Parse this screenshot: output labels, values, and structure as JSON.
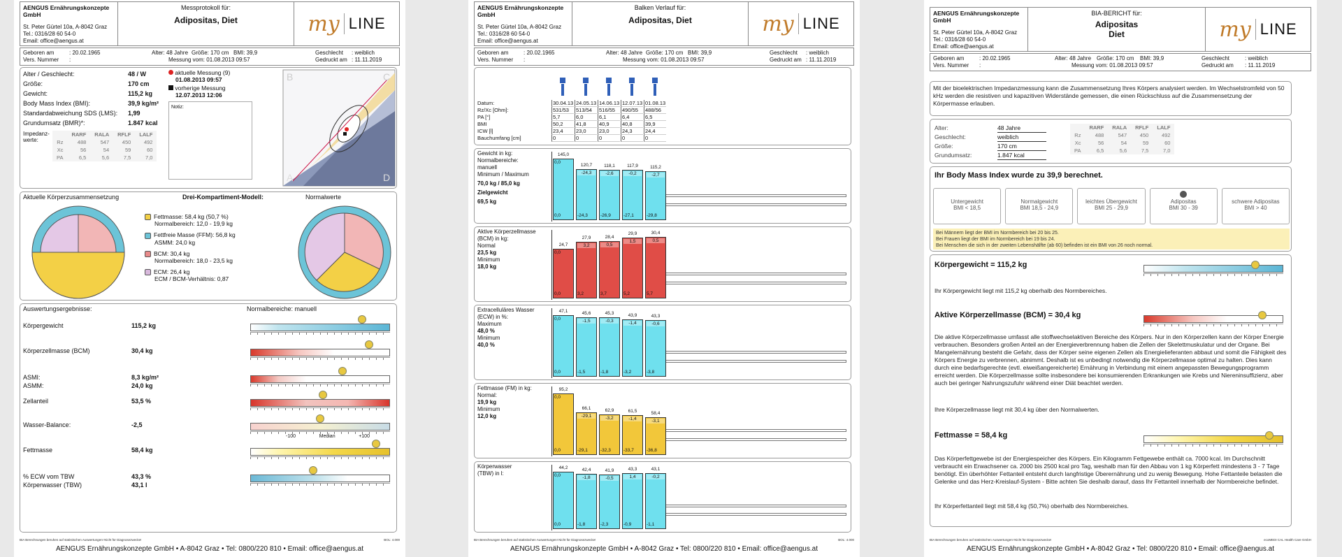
{
  "company": {
    "name": "AENGUS Ernährungskonzepte GmbH",
    "address": "St. Peter Gürtel 10a, A-8042 Graz",
    "tel": "Tel.: 0316/28 60 54-0",
    "email": "Email: office@aengus.at"
  },
  "logo": {
    "my": "my",
    "line": "LINE"
  },
  "patient": {
    "name": "Adipositas, Diet",
    "first": "Adipositas",
    "last": "Diet"
  },
  "info": {
    "geboren_label": "Geboren am",
    "geboren": ": 20.02.1965",
    "vers_label": "Vers. Nummer",
    "vers": ":",
    "alter": "Alter: 48 Jahre",
    "groesse": "Größe: 170 cm",
    "bmi": "BMI: 39,9",
    "messung": "Messung vom: 01.08.2013 09:57",
    "geschlecht_label": "Geschlecht",
    "geschlecht": ": weiblich",
    "gedruckt_label": "Gedruckt am",
    "gedruckt": ": 11.11.2019"
  },
  "footer": "AENGUS Ernährungskonzepte GmbH • A-8042 Graz • Tel: 0800/220 810 • Email: office@aengus.at",
  "smallnote_left": "BIA Berechnungen beruhen auf statistischen Auswertungen! Nicht für Diagnosezwecke!",
  "smallnote_right": "BOL: 4.000",
  "p1": {
    "title": "Messprotokoll für:",
    "rows": [
      {
        "k": "Alter / Geschlecht:",
        "v": "48 / W"
      },
      {
        "k": "Größe:",
        "v": "170 cm"
      },
      {
        "k": "Gewicht:",
        "v": "115,2 kg"
      },
      {
        "k": "Body Mass Index (BMI):",
        "v": "39,9 kg/m²"
      },
      {
        "k": "Standardabweichung SDS (LMS):",
        "v": "1,99"
      },
      {
        "k": "Grundumsatz (BMR)*:",
        "v": "1.847 kcal"
      }
    ],
    "imp_label": "Impedanz-werte:",
    "imp": {
      "head": [
        "",
        "RARF",
        "RALA",
        "RFLF",
        "LALF"
      ],
      "rows": [
        [
          "Rz",
          "488",
          "547",
          "450",
          "492"
        ],
        [
          "Xc",
          "56",
          "54",
          "59",
          "60"
        ],
        [
          "PA",
          "6,5",
          "5,6",
          "7,5",
          "7,0"
        ]
      ]
    },
    "current": "aktuelle Messung (9)",
    "current_date": "01.08.2013 09:57",
    "previous": "vorherige Messung",
    "previous_date": "12.07.2013 12:06",
    "notiz": "Notiz:",
    "comp_title": "Aktuelle Körperzusammensetzung",
    "model_title": "Drei-Kompartiment-Modell:",
    "norm_title": "Normalwerte",
    "legend": [
      {
        "l1": "Fettmasse: 58,4 kg (50,7 %)",
        "l2": "Normalbereich: 12,0 - 19,9 kg",
        "color": "#f3d046"
      },
      {
        "l1": "Fettfreie Masse (FFM): 56,8 kg",
        "l2": "ASMM: 24,0 kg",
        "color": "#6cc4d8"
      },
      {
        "l1": "BCM: 30,4 kg",
        "l2": "Normalbereich: 18,0 - 23,5 kg",
        "color": "#e88a8a"
      },
      {
        "l1": "ECM: 26,4 kg",
        "l2": "ECM / BCM-Verhältnis: 0,87",
        "color": "#d8b8dc"
      }
    ],
    "results_title": "Auswertungsergebnisse:",
    "normal_title": "Normalbereiche: manuell",
    "results": [
      {
        "k": "Körpergewicht",
        "v": "115,2 kg"
      },
      {
        "k": "Körperzellmasse (BCM)",
        "v": "30,4 kg"
      },
      {
        "k": "ASMI:",
        "v": "8,3 kg/m²",
        "k2": "ASMM:",
        "v2": "24,0 kg"
      },
      {
        "k": "Zellanteil",
        "v": "53,5 %"
      },
      {
        "k": "Wasser-Balance:",
        "v": "-2,5"
      },
      {
        "k": "Fettmasse",
        "v": "58,4 kg"
      },
      {
        "k": "% ECW vom TBW",
        "v": "43,3 %",
        "k2": "Körperwasser (TBW)",
        "v2": "43,1 l"
      }
    ],
    "wb_labels": [
      "-100",
      "Median",
      "+100"
    ],
    "graph_corners": [
      "B",
      "C",
      "A",
      "D"
    ]
  },
  "p2": {
    "title": "Balken Verlauf für:",
    "table": {
      "labels": [
        "Datum:",
        "Rz/Xc [Ohm]:",
        "PA [°]",
        "BMI",
        "ICW [l]",
        "Bauchumfang [cm]"
      ],
      "cols": [
        [
          "30.04.13",
          "531/53",
          "5,7",
          "50,2",
          "23,4",
          "0"
        ],
        [
          "24.05.13",
          "513/54",
          "6,0",
          "41,8",
          "23,0",
          "0"
        ],
        [
          "14.06.13",
          "516/55",
          "6,1",
          "40,9",
          "23,0",
          "0"
        ],
        [
          "12.07.13",
          "490/55",
          "6,4",
          "40,8",
          "24,3",
          "0"
        ],
        [
          "01.08.13",
          "488/56",
          "6,5",
          "39,9",
          "24,4",
          "0"
        ]
      ]
    },
    "sections": [
      {
        "label": [
          "Gewicht in kg:",
          "Normalbereiche:",
          "manuell",
          "Minimum / Maximum"
        ],
        "bold": [
          "70,0 kg / 85,0 kg",
          "Zielgewicht",
          "69,5 kg"
        ],
        "top": [
          "145,0",
          "120,7",
          "118,1",
          "117,9",
          "115,2"
        ],
        "first": "0,0",
        "diff": [
          "",
          "-24,3",
          "-2,6",
          "-0,2",
          "-2,7"
        ],
        "bottom": [
          "0,0",
          "-24,3",
          "-26,9",
          "-27,1",
          "-29,8"
        ],
        "color": "#6fe0ee"
      },
      {
        "label": [
          "Aktive Körperzellmasse",
          "(BCM) in kg:",
          "Normal",
          "23,5 kg",
          "Minimum",
          "18,0 kg"
        ],
        "bold": [],
        "top": [
          "24,7",
          "27,9",
          "28,4",
          "29,9",
          "30,4"
        ],
        "first": "0,0",
        "diff": [
          "",
          "3,2",
          "0,5",
          "1,5",
          "0,5"
        ],
        "bottom": [
          "0,0",
          "3,2",
          "3,7",
          "5,2",
          "5,7"
        ],
        "color": "#e04d47"
      },
      {
        "label": [
          "Extracelluläres Wasser",
          "(ECW) in %:",
          "Maximum",
          "48,0 %",
          "Minimum",
          "40,0 %"
        ],
        "bold": [],
        "top": [
          "47,1",
          "45,6",
          "45,3",
          "43,9",
          "43,3"
        ],
        "first": "0,0",
        "diff": [
          "",
          "-1,5",
          "-0,3",
          "-1,4",
          "-0,6"
        ],
        "bottom": [
          "0,0",
          "-1,5",
          "-1,8",
          "-3,2",
          "-3,8"
        ],
        "color": "#6fe0ee"
      },
      {
        "label": [
          "Fettmasse (FM) in kg:",
          "Normal:",
          "19,9 kg",
          "Minimum",
          "12,0 kg"
        ],
        "bold": [],
        "top": [
          "95,2",
          "66,1",
          "62,9",
          "61,5",
          "58,4"
        ],
        "first": "0,0",
        "diff": [
          "",
          "-29,1",
          "-3,2",
          "-1,4",
          "-3,1"
        ],
        "bottom": [
          "0,0",
          "-29,1",
          "-32,3",
          "-33,7",
          "-36,8"
        ],
        "color": "#f2c73a"
      },
      {
        "label": [
          "Körperwasser",
          "(TBW) in l:"
        ],
        "bold": [],
        "top": [
          "44,2",
          "42,4",
          "41,9",
          "43,3",
          "43,1"
        ],
        "first": "0,0",
        "diff": [
          "",
          "-1,8",
          "-0,5",
          "1,4",
          "-0,2"
        ],
        "bottom": [
          "0,0",
          "-1,8",
          "-2,3",
          "-0,9",
          "-1,1"
        ],
        "color": "#6fe0ee"
      }
    ]
  },
  "p3": {
    "title": "BIA-BERICHT für:",
    "intro": "Mit der bioelektrischen Impedanzmessung kann die Zusammensetzung Ihres Körpers analysiert werden. Im Wechselstromfeld von 50 kHz werden die resistiven und kapazitiven Widerstände gemessen, die einen Rückschluss auf die Zusammensetzung der Körpermasse erlauben.",
    "facts": [
      {
        "k": "Alter:",
        "v": "48 Jahre"
      },
      {
        "k": "Geschlecht:",
        "v": "weiblich"
      },
      {
        "k": "Größe:",
        "v": "170 cm"
      },
      {
        "k": "Grundumsatz:",
        "v": "1.847 kcal"
      }
    ],
    "bmi_heading": "Ihr Body Mass Index wurde zu 39,9 berechnet.",
    "bmi_cards": [
      {
        "t": "Untergewicht",
        "r": "BMI < 18,5"
      },
      {
        "t": "Normalgewicht",
        "r": "BMI 18,5 - 24,9"
      },
      {
        "t": "leichtes Übergewicht",
        "r": "BMI 25 - 29,9"
      },
      {
        "t": "Adipositas",
        "r": "BMI 30 - 39"
      },
      {
        "t": "schwere Adipositas",
        "r": "BMI > 40"
      }
    ],
    "bmi_notes": [
      "Bei Männern liegt der BMI im Normbereich bei 20 bis 25.",
      "Bei Frauen liegt der BMI im Normbereich bei 19 bis 24.",
      "Bei Menschen die sich in der zweiten Lebenshälfte (ab 60) befinden ist ein BMI von 26 noch normal."
    ],
    "weight_title": "Körpergewicht = 115,2 kg",
    "weight_text": "Ihr Körpergewicht liegt mit 115,2 kg oberhalb des Normbereiches.",
    "bcm_title": "Aktive Körperzellmasse (BCM) = 30,4 kg",
    "bcm_text": "Die aktive Körperzellmasse umfasst alle stoffwechselaktiven Bereiche des Körpers. Nur in den Körperzellen kann der Körper Energie verbrauchen. Besonders großen Anteil an der Energieverbrennung haben die Zellen der Skelettmuskulatur und der Organe. Bei Mangelernährung besteht die Gefahr, dass der Körper seine eigenen Zellen als Energielieferanten abbaut und somit die Fähigkeit des Körpers Energie zu verbrennen, abnimmt. Deshalb ist es unbedingt notwendig die Körperzellmasse optimal zu halten. Dies kann durch eine bedarfsgerechte (evtl. eiweißangereicherte) Ernährung in Verbindung mit einem angepassten Bewegungsprogramm erreicht werden. Die Körperzellmasse sollte insbesondere bei konsumierenden Erkrankungen wie Krebs und Niereninsuffizienz, aber auch bei geringer Nahrungszufuhr während einer Diät beachtet werden.",
    "bcm_text2": "Ihre Körperzellmasse liegt mit 30,4 kg über den Normalwerten.",
    "fat_title": "Fettmasse = 58,4 kg",
    "fat_text": "Das Körperfettgewebe ist der Energiespeicher des Körpers. Ein Kilogramm Fettgewebe enthält ca. 7000 kcal. Im Durchschnitt verbraucht ein Erwachsener ca. 2000 bis 2500 kcal pro Tag, weshalb man für den Abbau von 1 kg Körperfett mindestens 3 - 7 Tage benötigt. Ein überhöhter Fettanteil entsteht durch langfristige Überernährung und zu wenig Bewegung. Hohe Fettanteile belasten die Gelenke und das Herz-Kreislauf-System - Bitte achten Sie deshalb darauf, dass Ihr Fettanteil innerhalb der Normbereiche befindet.",
    "fat_text2": "Ihr Körperfettanteil liegt mit 58,4 kg (50,7%) oberhalb des Normbereiches.",
    "footer_right": "ecoMEDI CAL Health Care GmbH"
  },
  "chart_data": {
    "type": "bar",
    "categories": [
      "30.04.13",
      "24.05.13",
      "14.06.13",
      "12.07.13",
      "01.08.13"
    ],
    "series": [
      {
        "name": "Gewicht in kg",
        "values": [
          145.0,
          120.7,
          118.1,
          117.9,
          115.2
        ]
      },
      {
        "name": "Aktive Körperzellmasse (BCM) in kg",
        "values": [
          24.7,
          27.9,
          28.4,
          29.9,
          30.4
        ]
      },
      {
        "name": "Extracelluläres Wasser (ECW) in %",
        "values": [
          47.1,
          45.6,
          45.3,
          43.9,
          43.3
        ]
      },
      {
        "name": "Fettmasse (FM) in kg",
        "values": [
          95.2,
          66.1,
          62.9,
          61.5,
          58.4
        ]
      },
      {
        "name": "Körperwasser (TBW) in l",
        "values": [
          44.2,
          42.4,
          41.9,
          43.3,
          43.1
        ]
      }
    ]
  }
}
